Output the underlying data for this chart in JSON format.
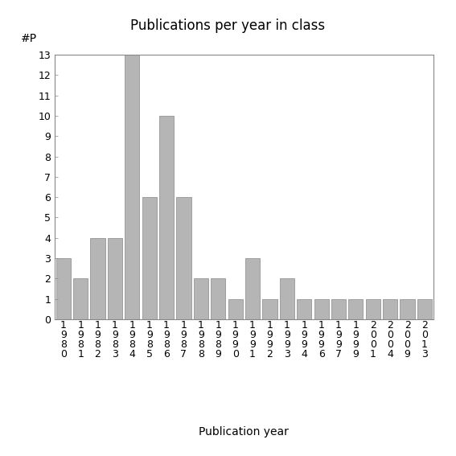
{
  "title": "Publications per year in class",
  "xlabel": "Publication year",
  "ylabel": "#P",
  "categories": [
    "1\n9\n8\n0",
    "1\n9\n8\n1",
    "1\n9\n8\n2",
    "1\n9\n8\n3",
    "1\n9\n8\n4",
    "1\n9\n8\n5",
    "1\n9\n8\n6",
    "1\n9\n8\n7",
    "1\n9\n8\n8",
    "1\n9\n8\n9",
    "1\n9\n9\n0",
    "1\n9\n9\n1",
    "1\n9\n9\n2",
    "1\n9\n9\n3",
    "1\n9\n9\n4",
    "1\n9\n9\n6",
    "1\n9\n9\n7",
    "1\n9\n9\n9",
    "2\n0\n0\n1",
    "2\n0\n0\n4",
    "2\n0\n0\n9",
    "2\n0\n1\n3"
  ],
  "values": [
    3,
    2,
    4,
    4,
    13,
    6,
    10,
    6,
    2,
    2,
    1,
    3,
    1,
    2,
    1,
    1,
    1,
    1,
    1,
    1,
    1,
    1
  ],
  "bar_color": "#b5b5b5",
  "bar_edge_color": "#888888",
  "ylim": [
    0,
    13
  ],
  "yticks": [
    0,
    1,
    2,
    3,
    4,
    5,
    6,
    7,
    8,
    9,
    10,
    11,
    12,
    13
  ],
  "title_fontsize": 12,
  "axis_label_fontsize": 10,
  "tick_fontsize": 9,
  "background_color": "#ffffff"
}
